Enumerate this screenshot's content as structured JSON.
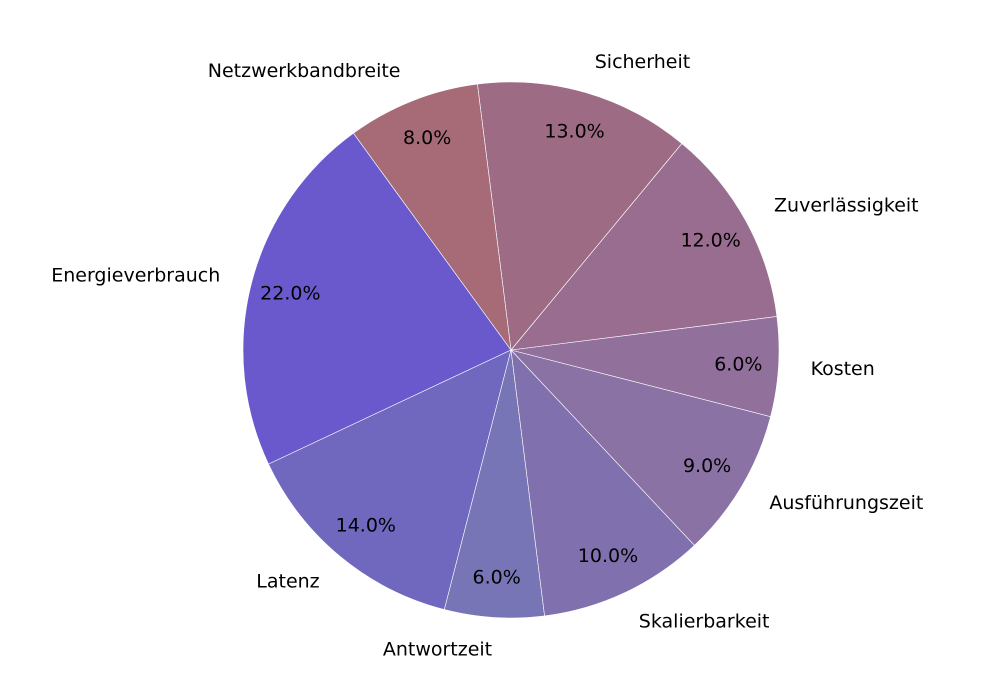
{
  "chart_data": {
    "type": "pie",
    "title": "",
    "start_angle_deg": 126,
    "direction": "counterclockwise",
    "slices": [
      {
        "label": "Energieverbrauch",
        "value": 22.0,
        "pct_label": "22.0%",
        "color": "#6959cd"
      },
      {
        "label": "Latenz",
        "value": 14.0,
        "pct_label": "14.0%",
        "color": "#7067bf"
      },
      {
        "label": "Antwortzeit",
        "value": 6.0,
        "pct_label": "6.0%",
        "color": "#7775b5"
      },
      {
        "label": "Skalierbarkeit",
        "value": 10.0,
        "pct_label": "10.0%",
        "color": "#8070ae"
      },
      {
        "label": "Ausführungszeit",
        "value": 9.0,
        "pct_label": "9.0%",
        "color": "#8a72a4"
      },
      {
        "label": "Kosten",
        "value": 6.0,
        "pct_label": "6.0%",
        "color": "#92709c"
      },
      {
        "label": "Zuverlässigkeit",
        "value": 12.0,
        "pct_label": "12.0%",
        "color": "#986d90"
      },
      {
        "label": "Sicherheit",
        "value": 13.0,
        "pct_label": "13.0%",
        "color": "#9e6b84"
      },
      {
        "label": "Netzwerkbandbreite",
        "value": 8.0,
        "pct_label": "8.0%",
        "color": "#a66b77"
      }
    ]
  }
}
